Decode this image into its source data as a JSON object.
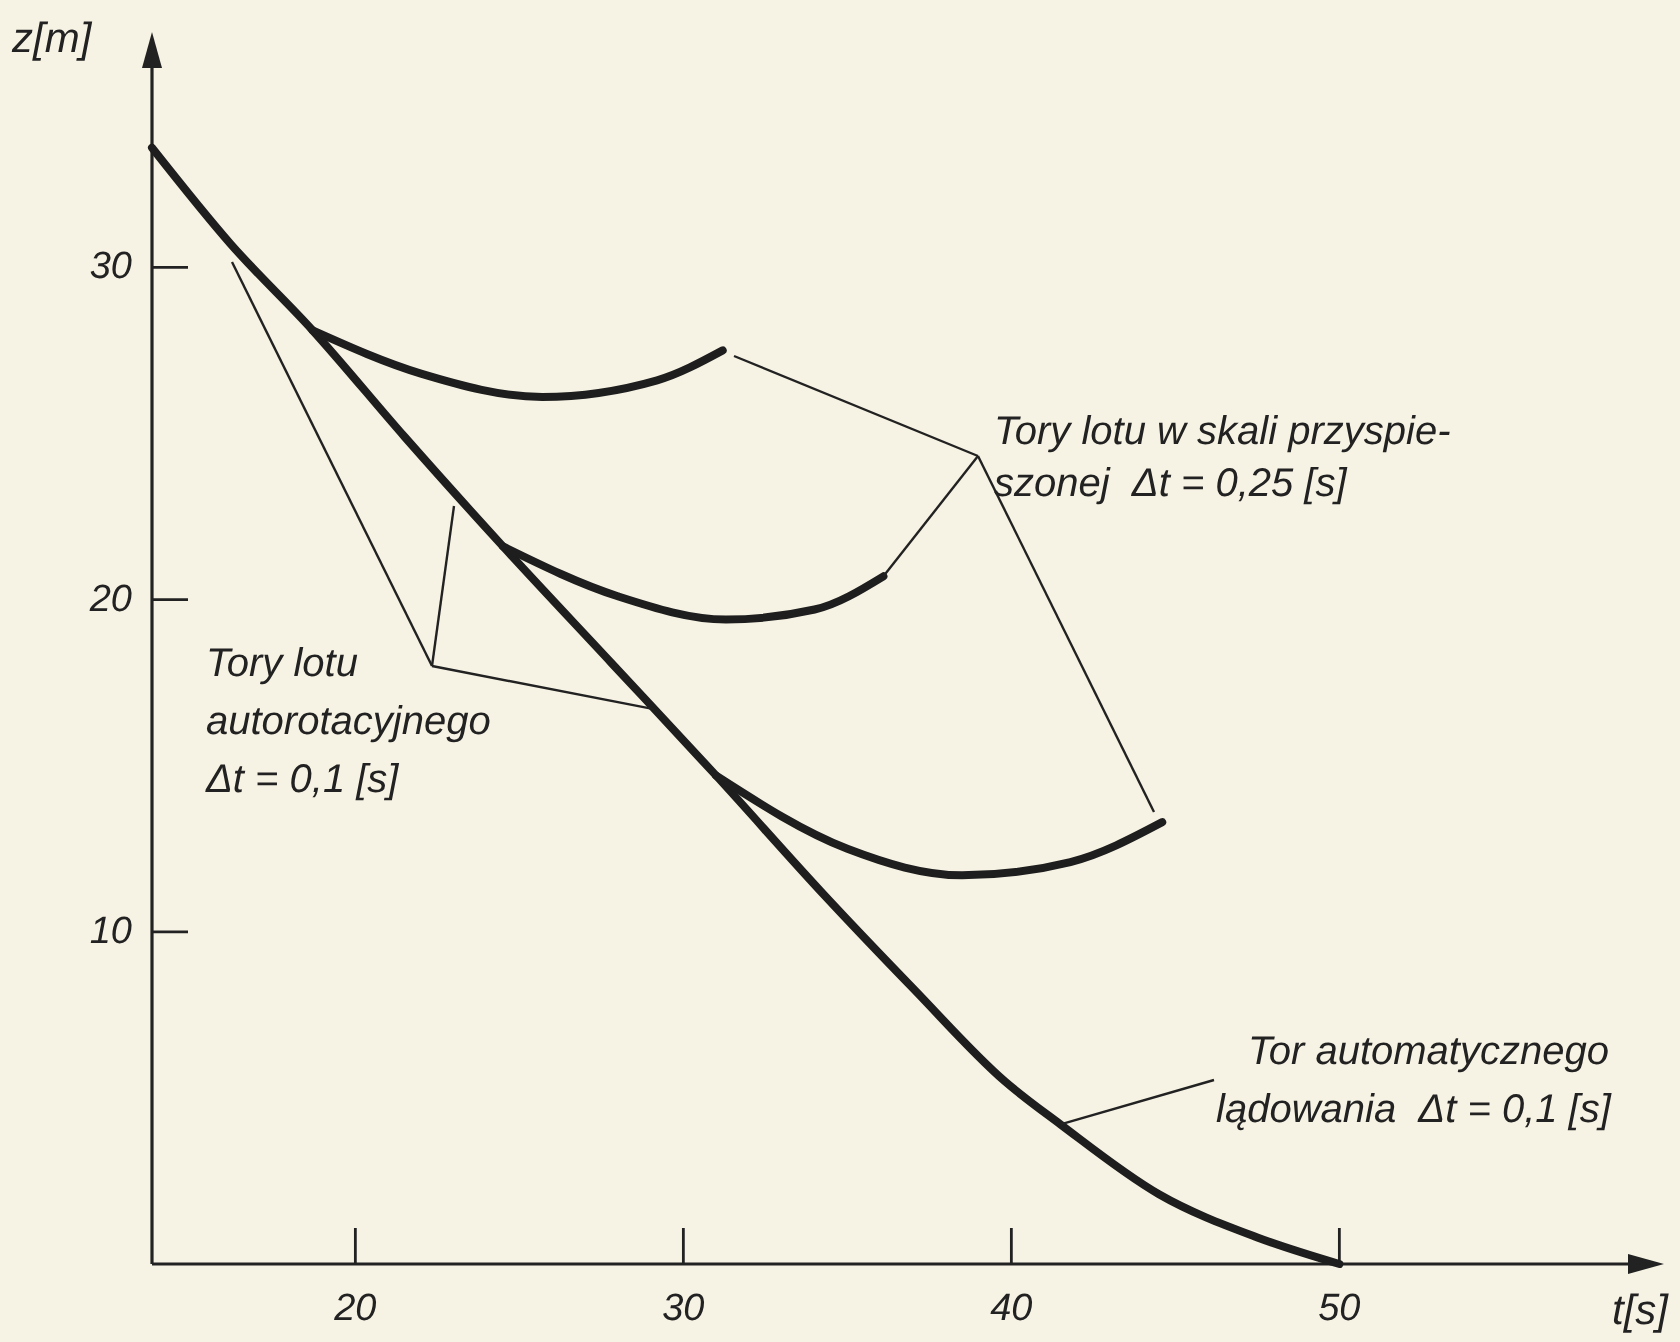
{
  "chart_data": {
    "type": "line",
    "xlabel": "t[s]",
    "ylabel": "z[m]",
    "xlim": [
      13.8,
      58.8
    ],
    "ylim": [
      0,
      36
    ],
    "xticks": [
      20,
      30,
      40,
      50
    ],
    "yticks": [
      10,
      20,
      30
    ],
    "series": [
      {
        "color": "#1e1e1e",
        "x": [
          13.8,
          16.2,
          18.7,
          21.5,
          24.5,
          27.8,
          31.0,
          34.3,
          37.0,
          39.8,
          41.5,
          44.5,
          47.5,
          50
        ],
        "values": [
          33.6,
          30.7,
          28.1,
          24.9,
          21.6,
          18.1,
          14.7,
          11.1,
          8.3,
          5.5,
          4.2,
          2.1,
          0.8,
          0
        ]
      },
      {
        "color": "#1e1e1e",
        "x": [
          18.7,
          22.0,
          25.7,
          29.2,
          31.2
        ],
        "values": [
          28.1,
          26.8,
          26.1,
          26.6,
          27.5
        ]
      },
      {
        "color": "#1e1e1e",
        "x": [
          24.5,
          28.0,
          31.3,
          34.0,
          36.1
        ],
        "values": [
          21.6,
          20.1,
          19.4,
          19.7,
          20.7
        ]
      },
      {
        "color": "#1e1e1e",
        "x": [
          31.0,
          35.0,
          38.5,
          41.8,
          44.6
        ],
        "values": [
          14.7,
          12.5,
          11.7,
          12.1,
          13.3
        ]
      }
    ],
    "annotations": [
      {
        "text": "Tory lotu w skali przyspie-\nszonej  Δt = 0,25 [s]",
        "x": 36.1,
        "y": 20.7
      },
      {
        "text": "Tory lotu\nautorotacyjnego\nΔt = 0,1 [s]",
        "x": 29.1,
        "y": 16.7
      },
      {
        "text": "Tor automatycznego\nlądowania  Δt = 0,1 [s]",
        "x": 41.5,
        "y": 4.2
      }
    ]
  }
}
